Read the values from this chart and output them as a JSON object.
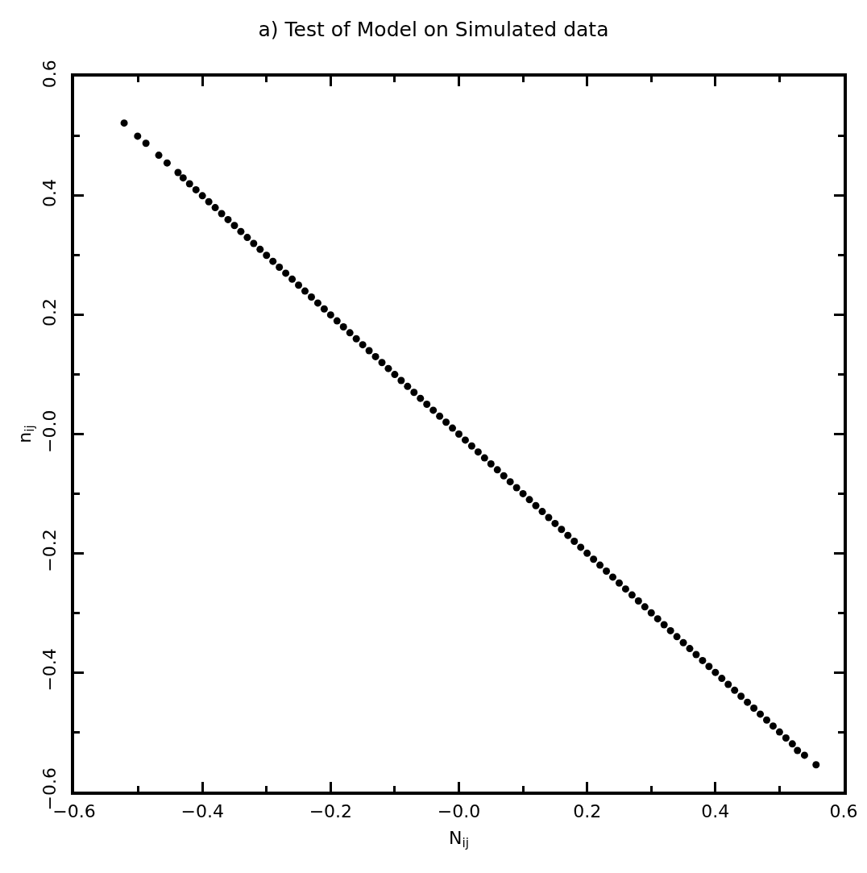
{
  "chart_data": {
    "type": "scatter",
    "title": "a) Test of Model on Simulated data",
    "xlabel": "N$_{ij}$",
    "ylabel": "n$_{ij}$",
    "xlim": [
      -0.6,
      0.6
    ],
    "ylim": [
      -0.6,
      0.6
    ],
    "xticks": [
      {
        "value": -0.6,
        "label": "−0.6"
      },
      {
        "value": -0.5,
        "label": null
      },
      {
        "value": -0.4,
        "label": "−0.4"
      },
      {
        "value": -0.3,
        "label": null
      },
      {
        "value": -0.2,
        "label": "−0.2"
      },
      {
        "value": -0.1,
        "label": null
      },
      {
        "value": 0,
        "label": "−0.0"
      },
      {
        "value": 0.1,
        "label": null
      },
      {
        "value": 0.2,
        "label": "0.2"
      },
      {
        "value": 0.3,
        "label": null
      },
      {
        "value": 0.4,
        "label": "0.4"
      },
      {
        "value": 0.5,
        "label": null
      },
      {
        "value": 0.6,
        "label": "0.6"
      }
    ],
    "yticks": [
      {
        "value": -0.6,
        "label": "−0.6"
      },
      {
        "value": -0.5,
        "label": null
      },
      {
        "value": -0.4,
        "label": "−0.4"
      },
      {
        "value": -0.3,
        "label": null
      },
      {
        "value": -0.2,
        "label": "−0.2"
      },
      {
        "value": -0.1,
        "label": null
      },
      {
        "value": 0,
        "label": "−0.0"
      },
      {
        "value": 0.1,
        "label": null
      },
      {
        "value": 0.2,
        "label": "0.2"
      },
      {
        "value": 0.3,
        "label": null
      },
      {
        "value": 0.4,
        "label": "0.4"
      },
      {
        "value": 0.5,
        "label": null
      },
      {
        "value": 0.6,
        "label": "0.6"
      }
    ],
    "grid": false,
    "marker": "circle",
    "series": [
      {
        "color": "#000000",
        "x": [
          -0.522,
          -0.501,
          -0.488,
          -0.468,
          -0.455,
          -0.438,
          -0.43,
          -0.42,
          -0.41,
          -0.4,
          -0.39,
          -0.38,
          -0.37,
          -0.36,
          -0.35,
          -0.34,
          -0.33,
          -0.32,
          -0.31,
          -0.3,
          -0.29,
          -0.28,
          -0.27,
          -0.26,
          -0.25,
          -0.24,
          -0.23,
          -0.22,
          -0.21,
          -0.2,
          -0.19,
          -0.18,
          -0.17,
          -0.16,
          -0.15,
          -0.14,
          -0.13,
          -0.12,
          -0.11,
          -0.1,
          -0.09,
          -0.08,
          -0.07,
          -0.06,
          -0.05,
          -0.04,
          -0.03,
          -0.02,
          -0.01,
          0,
          0.01,
          0.02,
          0.03,
          0.04,
          0.05,
          0.06,
          0.07,
          0.08,
          0.09,
          0.1,
          0.11,
          0.12,
          0.13,
          0.14,
          0.15,
          0.16,
          0.17,
          0.18,
          0.19,
          0.2,
          0.21,
          0.22,
          0.23,
          0.24,
          0.25,
          0.26,
          0.27,
          0.28,
          0.29,
          0.3,
          0.31,
          0.32,
          0.33,
          0.34,
          0.35,
          0.36,
          0.37,
          0.38,
          0.39,
          0.4,
          0.41,
          0.42,
          0.43,
          0.44,
          0.45,
          0.46,
          0.47,
          0.48,
          0.49,
          0.5,
          0.51,
          0.52,
          0.528,
          0.539,
          0.557
        ],
        "values": [
          0.522,
          0.5,
          0.488,
          0.468,
          0.455,
          0.439,
          0.43,
          0.42,
          0.41,
          0.4,
          0.39,
          0.38,
          0.37,
          0.36,
          0.35,
          0.34,
          0.33,
          0.32,
          0.31,
          0.3,
          0.29,
          0.28,
          0.27,
          0.26,
          0.25,
          0.24,
          0.23,
          0.22,
          0.21,
          0.2,
          0.19,
          0.18,
          0.17,
          0.16,
          0.15,
          0.14,
          0.13,
          0.12,
          0.11,
          0.1,
          0.09,
          0.08,
          0.07,
          0.06,
          0.05,
          0.04,
          0.03,
          0.02,
          0.01,
          0,
          -0.01,
          -0.02,
          -0.03,
          -0.04,
          -0.05,
          -0.06,
          -0.07,
          -0.08,
          -0.09,
          -0.1,
          -0.11,
          -0.12,
          -0.13,
          -0.14,
          -0.15,
          -0.16,
          -0.17,
          -0.18,
          -0.19,
          -0.2,
          -0.21,
          -0.22,
          -0.23,
          -0.24,
          -0.25,
          -0.26,
          -0.27,
          -0.28,
          -0.29,
          -0.3,
          -0.31,
          -0.32,
          -0.33,
          -0.34,
          -0.35,
          -0.36,
          -0.37,
          -0.38,
          -0.39,
          -0.4,
          -0.41,
          -0.42,
          -0.43,
          -0.44,
          -0.45,
          -0.46,
          -0.47,
          -0.48,
          -0.49,
          -0.5,
          -0.51,
          -0.52,
          -0.531,
          -0.539,
          -0.555
        ]
      }
    ]
  }
}
